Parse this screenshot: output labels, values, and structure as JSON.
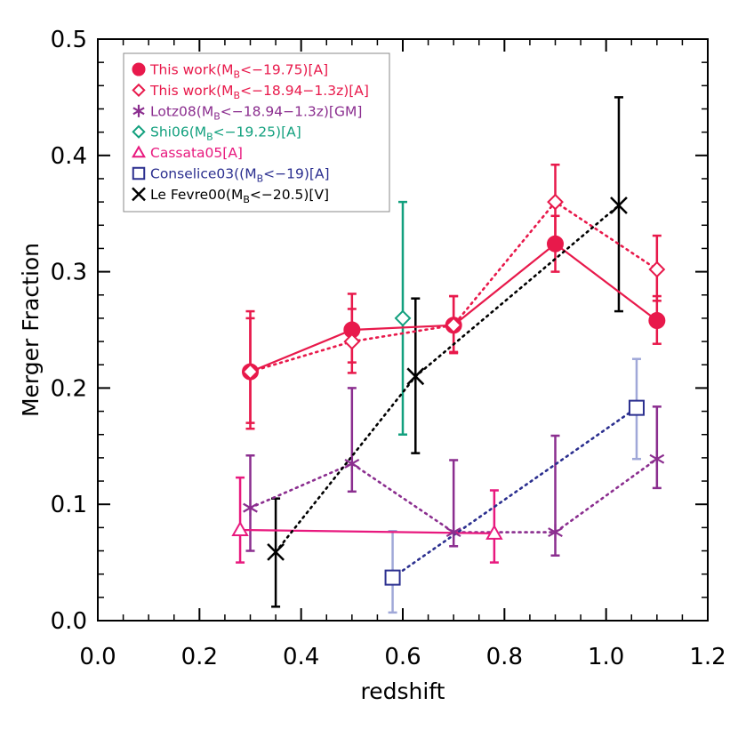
{
  "chart_data": {
    "type": "scatter",
    "xlabel": "redshift",
    "ylabel": "Merger Fraction",
    "xlim": [
      0.0,
      1.2
    ],
    "ylim": [
      0.0,
      0.5
    ],
    "x_ticks": [
      "0.0",
      "0.2",
      "0.4",
      "0.6",
      "0.8",
      "1.0",
      "1.2"
    ],
    "y_ticks": [
      "0.0",
      "0.1",
      "0.2",
      "0.3",
      "0.4",
      "0.5"
    ],
    "legend_position": "top-left",
    "grid": false,
    "series": [
      {
        "legend": [
          {
            "t": "This work(M"
          },
          {
            "t": "B",
            "sub": true
          },
          {
            "t": "<−19.75)[A]"
          }
        ],
        "color": "#E8194B",
        "marker": "filled-circle",
        "line": "solid",
        "points": [
          {
            "x": 0.3,
            "y": 0.214,
            "lo": 0.165,
            "hi": 0.266
          },
          {
            "x": 0.5,
            "y": 0.25,
            "lo": 0.222,
            "hi": 0.281
          },
          {
            "x": 0.7,
            "y": 0.254,
            "lo": 0.231,
            "hi": 0.279
          },
          {
            "x": 0.9,
            "y": 0.324,
            "lo": 0.3,
            "hi": 0.348
          },
          {
            "x": 1.1,
            "y": 0.258,
            "lo": 0.238,
            "hi": 0.279
          }
        ]
      },
      {
        "legend": [
          {
            "t": "This work(M"
          },
          {
            "t": "B",
            "sub": true
          },
          {
            "t": "<−18.94−1.3z)[A]"
          }
        ],
        "color": "#E8194B",
        "marker": "open-diamond",
        "line": "dotted",
        "points": [
          {
            "x": 0.3,
            "y": 0.214,
            "lo": 0.17,
            "hi": 0.26
          },
          {
            "x": 0.5,
            "y": 0.24,
            "lo": 0.213,
            "hi": 0.268
          },
          {
            "x": 0.7,
            "y": 0.254,
            "lo": 0.23,
            "hi": 0.279
          },
          {
            "x": 0.9,
            "y": 0.36,
            "lo": 0.328,
            "hi": 0.392
          },
          {
            "x": 1.1,
            "y": 0.302,
            "lo": 0.275,
            "hi": 0.331
          }
        ]
      },
      {
        "legend": [
          {
            "t": "Lotz08(M"
          },
          {
            "t": "B",
            "sub": true
          },
          {
            "t": "<−18.94−1.3z)[GM]"
          }
        ],
        "color": "#8B2E8F",
        "marker": "asterisk",
        "line": "dotted",
        "points": [
          {
            "x": 0.3,
            "y": 0.097,
            "lo": 0.06,
            "hi": 0.142
          },
          {
            "x": 0.5,
            "y": 0.135,
            "lo": 0.111,
            "hi": 0.2
          },
          {
            "x": 0.7,
            "y": 0.076,
            "lo": 0.064,
            "hi": 0.138
          },
          {
            "x": 0.9,
            "y": 0.076,
            "lo": 0.056,
            "hi": 0.159
          },
          {
            "x": 1.1,
            "y": 0.139,
            "lo": 0.114,
            "hi": 0.184
          }
        ]
      },
      {
        "legend": [
          {
            "t": "Shi06(M"
          },
          {
            "t": "B",
            "sub": true
          },
          {
            "t": "<−19.25)[A]"
          }
        ],
        "color": "#12A07E",
        "marker": "open-diamond",
        "line": "none",
        "points": [
          {
            "x": 0.6,
            "y": 0.26,
            "lo": 0.16,
            "hi": 0.36
          }
        ]
      },
      {
        "legend": [
          {
            "t": "Cassata05[A]"
          }
        ],
        "color": "#E8197E",
        "marker": "open-triangle",
        "line": "solid",
        "points": [
          {
            "x": 0.28,
            "y": 0.078,
            "lo": 0.05,
            "hi": 0.123
          },
          {
            "x": 0.78,
            "y": 0.075,
            "lo": 0.05,
            "hi": 0.112
          }
        ]
      },
      {
        "legend": [
          {
            "t": "Conselice03((M"
          },
          {
            "t": "B",
            "sub": true
          },
          {
            "t": "<−19)[A]"
          }
        ],
        "color": "#2B2F8F",
        "errcolor": "#A0A8D8",
        "marker": "open-square",
        "line": "dotted",
        "points": [
          {
            "x": 0.58,
            "y": 0.037,
            "lo": 0.007,
            "hi": 0.077
          },
          {
            "x": 1.06,
            "y": 0.183,
            "lo": 0.139,
            "hi": 0.225
          }
        ]
      },
      {
        "legend": [
          {
            "t": "Le Fevre00(M"
          },
          {
            "t": "B",
            "sub": true
          },
          {
            "t": "<−20.5)[V]"
          }
        ],
        "color": "#000000",
        "marker": "x",
        "line": "dotted",
        "points": [
          {
            "x": 0.35,
            "y": 0.059,
            "lo": 0.012,
            "hi": 0.105
          },
          {
            "x": 0.625,
            "y": 0.21,
            "lo": 0.144,
            "hi": 0.277
          },
          {
            "x": 1.025,
            "y": 0.357,
            "lo": 0.266,
            "hi": 0.45
          }
        ]
      }
    ]
  }
}
